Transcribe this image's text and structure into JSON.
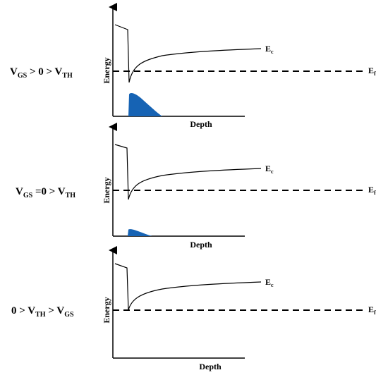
{
  "panels": [
    {
      "condition": {
        "v1": "V",
        "s1": "GS",
        "t1": " > 0 > ",
        "v2": "V",
        "s2": "TH",
        "t2": "",
        "v3": "",
        "s3": ""
      },
      "xlabel": "Depth",
      "ylabel": "Energy",
      "ec": {
        "main": "E",
        "sub": "c"
      },
      "ef": {
        "main": "E",
        "sub": "f"
      },
      "electron_fill_level": 1.0
    },
    {
      "condition": {
        "v1": "V",
        "s1": "GS",
        "t1": " =0 > ",
        "v2": "V",
        "s2": "TH",
        "t2": "",
        "v3": "",
        "s3": ""
      },
      "xlabel": "Depth",
      "ylabel": "Energy",
      "ec": {
        "main": "E",
        "sub": "c"
      },
      "ef": {
        "main": "E",
        "sub": "f"
      },
      "electron_fill_level": 0.3
    },
    {
      "condition": {
        "v1": "",
        "s1": "",
        "t1": "0 > ",
        "v2": "V",
        "s2": "TH",
        "t2": " > ",
        "v3": "V",
        "s3": "GS"
      },
      "xlabel": "Depth",
      "ylabel": "Energy",
      "ec": {
        "main": "E",
        "sub": "c"
      },
      "ef": {
        "main": "E",
        "sub": "f"
      },
      "electron_fill_level": 0
    }
  ],
  "colors": {
    "electron_fill": "#1663b4",
    "line": "#000000"
  }
}
